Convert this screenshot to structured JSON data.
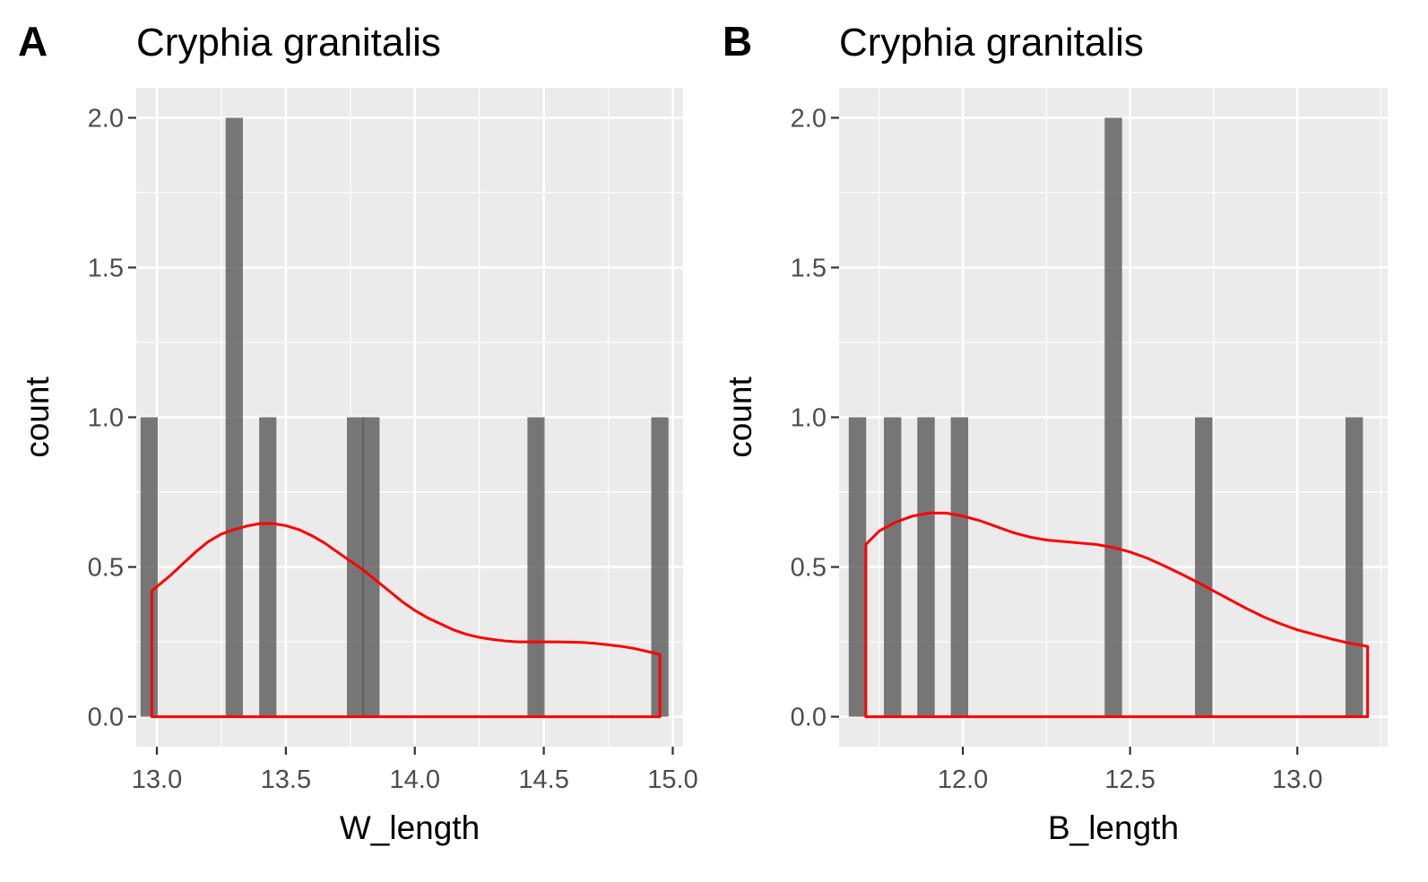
{
  "chart_data": [
    {
      "type": "bar",
      "panel_tag": "A",
      "title": "Cryphia granitalis",
      "xlabel": "W_length",
      "ylabel": "count",
      "xlim": [
        12.92,
        15.04
      ],
      "ylim": [
        -0.1,
        2.1
      ],
      "x_ticks": [
        13.0,
        13.5,
        14.0,
        14.5,
        15.0
      ],
      "x_tick_labels": [
        "13.0",
        "13.5",
        "14.0",
        "14.5",
        "15.0"
      ],
      "y_ticks": [
        0.0,
        0.5,
        1.0,
        1.5,
        2.0
      ],
      "y_tick_labels": [
        "0.0",
        "0.5",
        "1.0",
        "1.5",
        "2.0"
      ],
      "bin_width": 0.0667,
      "bars": [
        {
          "x": 12.97,
          "count": 1
        },
        {
          "x": 13.3,
          "count": 2
        },
        {
          "x": 13.43,
          "count": 1
        },
        {
          "x": 13.77,
          "count": 1
        },
        {
          "x": 13.83,
          "count": 1
        },
        {
          "x": 14.47,
          "count": 1
        },
        {
          "x": 14.95,
          "count": 1
        }
      ],
      "bar_color": "#595959",
      "density_color": "#ff0000",
      "density": {
        "x": [
          12.98,
          13.05,
          13.1,
          13.15,
          13.2,
          13.25,
          13.3,
          13.35,
          13.4,
          13.45,
          13.5,
          13.55,
          13.6,
          13.65,
          13.7,
          13.75,
          13.8,
          13.85,
          13.9,
          13.95,
          14.0,
          14.05,
          14.1,
          14.15,
          14.2,
          14.25,
          14.3,
          14.35,
          14.4,
          14.45,
          14.5,
          14.55,
          14.6,
          14.65,
          14.7,
          14.75,
          14.8,
          14.85,
          14.9,
          14.95
        ],
        "y": [
          0.42,
          0.47,
          0.51,
          0.55,
          0.585,
          0.61,
          0.625,
          0.637,
          0.645,
          0.645,
          0.638,
          0.625,
          0.605,
          0.58,
          0.55,
          0.52,
          0.49,
          0.455,
          0.42,
          0.385,
          0.355,
          0.33,
          0.31,
          0.29,
          0.275,
          0.265,
          0.258,
          0.253,
          0.25,
          0.25,
          0.25,
          0.25,
          0.249,
          0.248,
          0.245,
          0.24,
          0.235,
          0.228,
          0.218,
          0.208
        ]
      }
    },
    {
      "type": "bar",
      "panel_tag": "B",
      "title": "Cryphia granitalis",
      "xlabel": "B_length",
      "ylabel": "count",
      "xlim": [
        11.63,
        13.27
      ],
      "ylim": [
        -0.1,
        2.1
      ],
      "x_ticks": [
        12.0,
        12.5,
        13.0
      ],
      "x_tick_labels": [
        "12.0",
        "12.5",
        "13.0"
      ],
      "y_ticks": [
        0.0,
        0.5,
        1.0,
        1.5,
        2.0
      ],
      "y_tick_labels": [
        "0.0",
        "0.5",
        "1.0",
        "1.5",
        "2.0"
      ],
      "bin_width": 0.052,
      "bars": [
        {
          "x": 11.685,
          "count": 1
        },
        {
          "x": 11.79,
          "count": 1
        },
        {
          "x": 11.89,
          "count": 1
        },
        {
          "x": 11.99,
          "count": 1
        },
        {
          "x": 12.45,
          "count": 2
        },
        {
          "x": 12.72,
          "count": 1
        },
        {
          "x": 13.17,
          "count": 1
        }
      ],
      "bar_color": "#595959",
      "density_color": "#ff0000",
      "density": {
        "x": [
          11.71,
          11.75,
          11.8,
          11.85,
          11.9,
          11.95,
          12.0,
          12.05,
          12.1,
          12.15,
          12.2,
          12.25,
          12.3,
          12.35,
          12.4,
          12.45,
          12.5,
          12.55,
          12.6,
          12.65,
          12.7,
          12.75,
          12.8,
          12.85,
          12.9,
          12.95,
          13.0,
          13.05,
          13.1,
          13.15,
          13.21
        ],
        "y": [
          0.575,
          0.62,
          0.65,
          0.67,
          0.68,
          0.68,
          0.67,
          0.655,
          0.635,
          0.615,
          0.6,
          0.59,
          0.585,
          0.58,
          0.575,
          0.565,
          0.55,
          0.53,
          0.505,
          0.478,
          0.45,
          0.42,
          0.39,
          0.36,
          0.333,
          0.31,
          0.29,
          0.275,
          0.26,
          0.247,
          0.235
        ]
      }
    }
  ]
}
